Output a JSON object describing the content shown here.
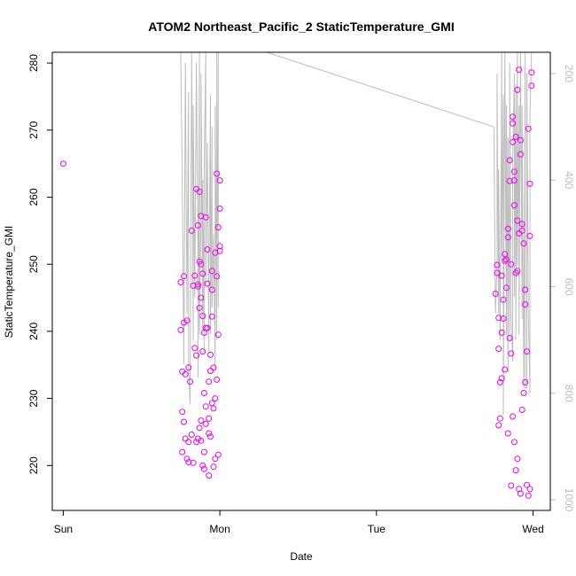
{
  "chart_data": {
    "type": "scatter",
    "title": "ATOM2 Northeast_Pacific_2 StaticTemperature_GMI",
    "xlabel": "Date",
    "ylabel": "StaticTemperature_GMI",
    "x_ticks": [
      "Sun",
      "Mon",
      "Tue",
      "Wed"
    ],
    "x_tick_values": [
      0,
      1,
      2,
      3
    ],
    "xlim": [
      -0.07,
      3.11
    ],
    "ylim": [
      213.3,
      281.6
    ],
    "y_ticks": [
      220,
      230,
      240,
      250,
      260,
      270,
      280
    ],
    "y2_ticks": [
      200,
      400,
      600,
      800,
      1000
    ],
    "y2lim": [
      1020,
      160
    ],
    "y2_reversed": true,
    "grid": false,
    "colors": {
      "points": "#ee00ee",
      "secondary_line": "#bdbdbd"
    },
    "series": [
      {
        "marker": "open-circle",
        "x": [
          0.0,
          0.75,
          0.75,
          0.76,
          0.76,
          0.76,
          0.77,
          0.77,
          0.78,
          0.78,
          0.79,
          0.8,
          0.8,
          0.81,
          0.82,
          0.83,
          0.84,
          0.85,
          0.85,
          0.86,
          0.86,
          0.87,
          0.87,
          0.87,
          0.88,
          0.88,
          0.88,
          0.88,
          0.89,
          0.89,
          0.89,
          0.9,
          0.9,
          0.9,
          0.91,
          0.91,
          0.91,
          0.92,
          0.92,
          0.93,
          0.93,
          0.93,
          0.94,
          0.94,
          0.95,
          0.95,
          0.95,
          0.96,
          0.96,
          0.97,
          0.97,
          0.98,
          0.98,
          0.99,
          0.99,
          0.99,
          1.0,
          1.0,
          1.0,
          1.0,
          0.77,
          0.79,
          0.8,
          0.82,
          0.83,
          0.84,
          0.85,
          0.86,
          0.86,
          0.87,
          0.88,
          0.89,
          0.9,
          0.91,
          0.92,
          0.93,
          0.94,
          0.95,
          0.96,
          0.97,
          0.98,
          2.76,
          2.77,
          2.77,
          2.78,
          2.78,
          2.79,
          2.79,
          2.8,
          2.8,
          2.81,
          2.81,
          2.82,
          2.82,
          2.83,
          2.83,
          2.84,
          2.84,
          2.85,
          2.85,
          2.86,
          2.86,
          2.87,
          2.87,
          2.87,
          2.88,
          2.88,
          2.88,
          2.89,
          2.89,
          2.9,
          2.9,
          2.9,
          2.91,
          2.91,
          2.92,
          2.92,
          2.93,
          2.93,
          2.94,
          2.95,
          2.95,
          2.96,
          2.97,
          2.98,
          2.98,
          2.99,
          2.99,
          2.78,
          2.8,
          2.82,
          2.84,
          2.85,
          2.86,
          2.87,
          2.88,
          2.89,
          2.9,
          2.91,
          2.92,
          2.93,
          2.94,
          2.95,
          2.96,
          2.97,
          2.98
        ],
        "y": [
          265.0,
          247.3,
          240.2,
          234.0,
          228.0,
          222.0,
          241.3,
          226.5,
          224.0,
          233.6,
          221.0,
          223.5,
          220.5,
          232.5,
          255.0,
          246.8,
          248.3,
          261.2,
          236.4,
          255.8,
          247.0,
          250.4,
          243.5,
          225.6,
          226.7,
          245.0,
          257.2,
          223.7,
          237.0,
          248.6,
          242.3,
          239.8,
          219.5,
          222.0,
          240.5,
          226.2,
          228.8,
          247.1,
          252.2,
          218.5,
          224.8,
          232.5,
          234.1,
          236.5,
          242.2,
          246.2,
          249.0,
          228.5,
          219.8,
          221.0,
          230.0,
          263.5,
          248.2,
          255.5,
          221.6,
          239.5,
          258.3,
          262.5,
          252.7,
          252.0,
          248.2,
          241.6,
          234.6,
          224.6,
          220.4,
          237.5,
          223.5,
          224.0,
          246.7,
          260.8,
          250.0,
          220.0,
          230.8,
          257.0,
          240.5,
          227.0,
          224.3,
          229.3,
          234.6,
          251.7,
          232.8,
          245.6,
          248.7,
          249.9,
          237.4,
          226.0,
          227.0,
          232.4,
          233.0,
          239.8,
          244.7,
          241.9,
          250.5,
          251.5,
          246.5,
          250.7,
          255.3,
          254.0,
          265.5,
          262.4,
          250.0,
          217.0,
          268.2,
          272.0,
          271.0,
          263.8,
          262.5,
          258.8,
          248.7,
          269.0,
          276.0,
          256.5,
          249.0,
          279.0,
          254.6,
          268.5,
          266.4,
          256.0,
          255.0,
          253.1,
          244.0,
          246.2,
          237.0,
          270.2,
          262.0,
          254.2,
          278.6,
          276.6,
          242.0,
          248.3,
          234.3,
          224.8,
          239.0,
          236.7,
          227.3,
          223.5,
          219.3,
          221.0,
          216.5,
          215.8,
          228.3,
          230.8,
          232.4,
          217.1,
          215.5,
          216.5
        ]
      }
    ],
    "secondary_line": {
      "axis": "right",
      "x": [
        0.75,
        0.76,
        0.77,
        0.78,
        0.79,
        0.8,
        0.8,
        0.81,
        0.82,
        0.83,
        0.83,
        0.84,
        0.85,
        0.86,
        0.86,
        0.87,
        0.87,
        0.88,
        0.88,
        0.89,
        0.89,
        0.9,
        0.9,
        0.91,
        0.91,
        0.92,
        0.93,
        0.93,
        0.94,
        0.94,
        0.95,
        0.95,
        0.96,
        0.97,
        0.97,
        0.98,
        0.98,
        0.99,
        0.99,
        1.3,
        2.75,
        2.76,
        2.77,
        2.77,
        2.78,
        2.78,
        2.79,
        2.8,
        2.8,
        2.81,
        2.81,
        2.82,
        2.83,
        2.83,
        2.84,
        2.84,
        2.85,
        2.85,
        2.86,
        2.87,
        2.87,
        2.88,
        2.88,
        2.89,
        2.89,
        2.9,
        2.9,
        2.91,
        2.91,
        2.92,
        2.93,
        2.93,
        2.94,
        2.95,
        2.95,
        2.96,
        2.96,
        2.97,
        2.98,
        2.98,
        2.99
      ],
      "y": [
        160,
        400,
        745,
        180,
        650,
        235,
        750,
        820,
        160,
        700,
        260,
        620,
        180,
        540,
        770,
        160,
        690,
        450,
        200,
        680,
        400,
        720,
        380,
        160,
        600,
        330,
        720,
        600,
        240,
        690,
        300,
        640,
        500,
        760,
        260,
        700,
        160,
        640,
        160,
        160,
        300,
        650,
        560,
        200,
        650,
        380,
        700,
        160,
        550,
        240,
        840,
        160,
        690,
        260,
        760,
        320,
        700,
        180,
        660,
        740,
        360,
        200,
        620,
        220,
        700,
        160,
        560,
        260,
        690,
        160,
        660,
        260,
        790,
        160,
        790,
        790,
        200,
        660,
        800,
        280,
        160
      ]
    }
  }
}
